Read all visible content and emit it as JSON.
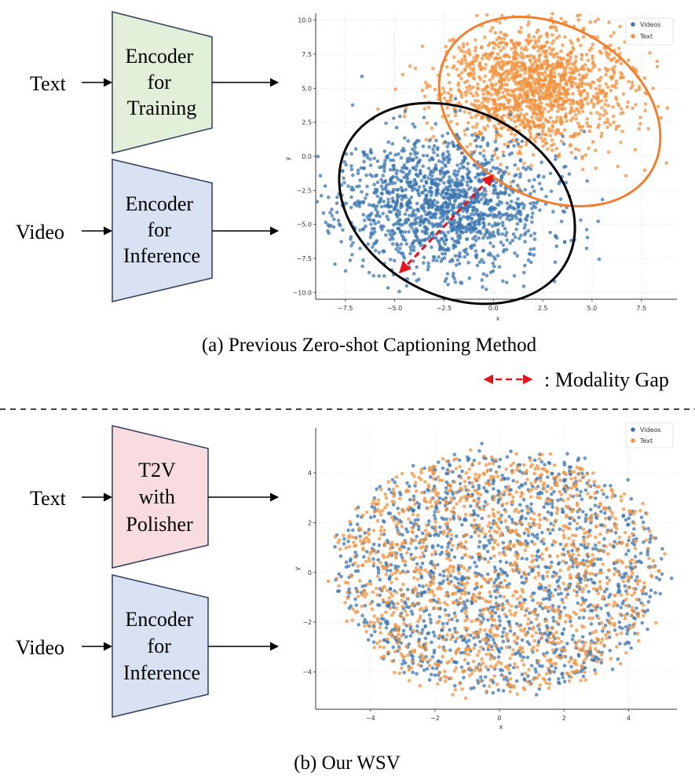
{
  "panel_a": {
    "inputs": [
      "Text",
      "Video"
    ],
    "encoders": [
      {
        "lines": [
          "Encoder",
          "for",
          "Training"
        ],
        "fill": "#e2efd9"
      },
      {
        "lines": [
          "Encoder",
          "for",
          "Inference"
        ],
        "fill": "#d9e2f3"
      }
    ],
    "caption": "(a) Previous Zero-shot Captioning Method",
    "gap_legend": ": Modality Gap"
  },
  "panel_b": {
    "inputs": [
      "Text",
      "Video"
    ],
    "encoders": [
      {
        "lines": [
          "T2V",
          "with",
          "Polisher"
        ],
        "fill": "#f8dce0"
      },
      {
        "lines": [
          "Encoder",
          "for",
          "Inference"
        ],
        "fill": "#d9e2f3"
      }
    ],
    "caption": "(b) Our WSV"
  },
  "colors": {
    "videos": "#3a75b0",
    "text": "#f0923e",
    "orange_ellipse": "#f07f2f",
    "black_ellipse": "#000000",
    "gap_arrow": "#e8141b",
    "edge": "#000000"
  },
  "chart_data": [
    {
      "type": "scatter",
      "xlabel": "x",
      "ylabel": "y",
      "xticks": [
        "−7.5",
        "−5.0",
        "−2.5",
        "0.0",
        "2.5",
        "5.0",
        "7.5"
      ],
      "yticks": [
        "10.0",
        "7.5",
        "5.0",
        "2.5",
        "0.0",
        "−2.5",
        "−5.0",
        "−7.5",
        "−10.0"
      ],
      "xlim": [
        -9,
        9.3
      ],
      "ylim": [
        -10.5,
        10.5
      ],
      "grid": true,
      "legend": "top-right",
      "series": [
        {
          "name": "Videos",
          "center": [
            -2.5,
            -3.5
          ],
          "spread": [
            2.6,
            2.5
          ]
        },
        {
          "name": "Text",
          "center": [
            2,
            5
          ],
          "spread": [
            2.4,
            2.3
          ]
        }
      ],
      "annotations": [
        "orange ellipse around Text cluster",
        "black ellipse around Videos cluster",
        "red dashed double arrow from (-4.8, -8.6) to (0, -1.3)"
      ]
    },
    {
      "type": "scatter",
      "xlabel": "x",
      "ylabel": "y",
      "xticks": [
        "−4",
        "−2",
        "0",
        "2",
        "4"
      ],
      "yticks": [
        "4",
        "2",
        "0",
        "−2",
        "−4"
      ],
      "xlim": [
        -5.7,
        5.5
      ],
      "ylim": [
        -5.5,
        5.8
      ],
      "grid": true,
      "legend": "top-right",
      "series": [
        {
          "name": "Videos",
          "center": [
            0,
            0
          ],
          "spread": [
            2.0,
            2.0
          ]
        },
        {
          "name": "Text",
          "center": [
            0,
            0
          ],
          "spread": [
            2.0,
            2.0
          ]
        }
      ]
    }
  ]
}
